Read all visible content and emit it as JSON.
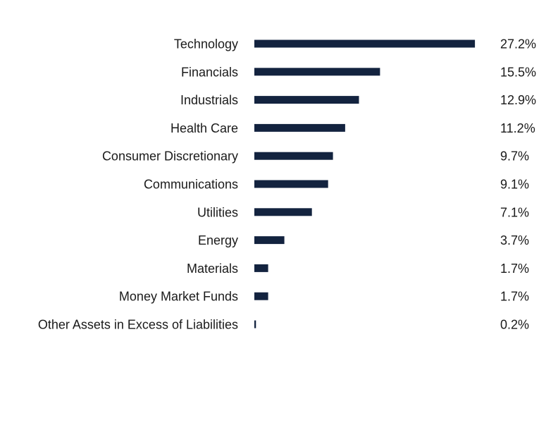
{
  "chart_data": {
    "type": "bar",
    "orientation": "horizontal",
    "categories": [
      "Technology",
      "Financials",
      "Industrials",
      "Health Care",
      "Consumer Discretionary",
      "Communications",
      "Utilities",
      "Energy",
      "Materials",
      "Money Market Funds",
      "Other Assets in Excess of Liabilities"
    ],
    "values": [
      27.2,
      15.5,
      12.9,
      11.2,
      9.7,
      9.1,
      7.1,
      3.7,
      1.7,
      1.7,
      0.2
    ],
    "value_labels": [
      "27.2%",
      "15.5%",
      "12.9%",
      "11.2%",
      "9.7%",
      "9.1%",
      "7.1%",
      "3.7%",
      "1.7%",
      "1.7%",
      "0.2%"
    ],
    "title": "",
    "xlabel": "",
    "ylabel": "",
    "grid": false,
    "legend": "none",
    "bar_color": "#13233f"
  }
}
